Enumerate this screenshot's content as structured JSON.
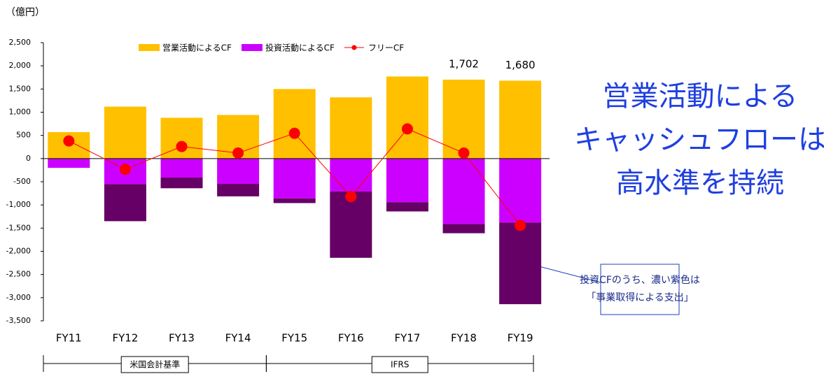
{
  "chart_data": {
    "type": "bar",
    "unit": "（億円）",
    "title": [
      "営業活動による",
      "キャッシュフローは",
      "高水準を持続"
    ],
    "annotation": [
      "投資CFのうち、濃い紫色は",
      "「事業取得による支出」"
    ],
    "periods": [
      {
        "label": "米国会計基準",
        "from": 0,
        "to": 3
      },
      {
        "label": "IFRS",
        "from": 4,
        "to": 8
      }
    ],
    "categories": [
      "FY11",
      "FY12",
      "FY13",
      "FY14",
      "FY15",
      "FY16",
      "FY17",
      "FY18",
      "FY19"
    ],
    "series": [
      {
        "name": "営業活動によるCF",
        "color": "#ffc000",
        "values": [
          570,
          1120,
          880,
          940,
          1500,
          1320,
          1770,
          1702,
          1680
        ],
        "value_labels": [
          null,
          null,
          null,
          null,
          null,
          null,
          null,
          "1,702",
          "1,680"
        ]
      },
      {
        "name": "投資活動によるCF",
        "color": "#cc00ff",
        "values": [
          -200,
          -550,
          -410,
          -545,
          -860,
          -710,
          -940,
          -1410,
          -1380
        ]
      },
      {
        "color": "#660066",
        "values": [
          0,
          -800,
          -230,
          -270,
          -100,
          -1430,
          -200,
          -200,
          -1760
        ]
      },
      {
        "name": "フリーCF",
        "type": "line",
        "color": "#ff0000",
        "values": [
          380,
          -230,
          260,
          120,
          545,
          -820,
          640,
          120,
          -1440
        ]
      }
    ],
    "ylim": [
      -3500,
      2500
    ],
    "yticks": [
      {
        "value": 2500,
        "label": "2,500"
      },
      {
        "value": 2000,
        "label": "2,000"
      },
      {
        "value": 1500,
        "label": "1,500"
      },
      {
        "value": 1000,
        "label": "1,000"
      },
      500,
      0,
      -500,
      {
        "value": -1000,
        "label": "-1,000"
      },
      {
        "value": -1500,
        "label": "-1,500"
      },
      {
        "value": -2000,
        "label": "-2,000"
      },
      {
        "value": -2500,
        "label": "-2,500"
      },
      {
        "value": -3000,
        "label": "-3,000"
      },
      {
        "value": -3500,
        "label": "-3,500"
      }
    ],
    "legend": "top"
  }
}
